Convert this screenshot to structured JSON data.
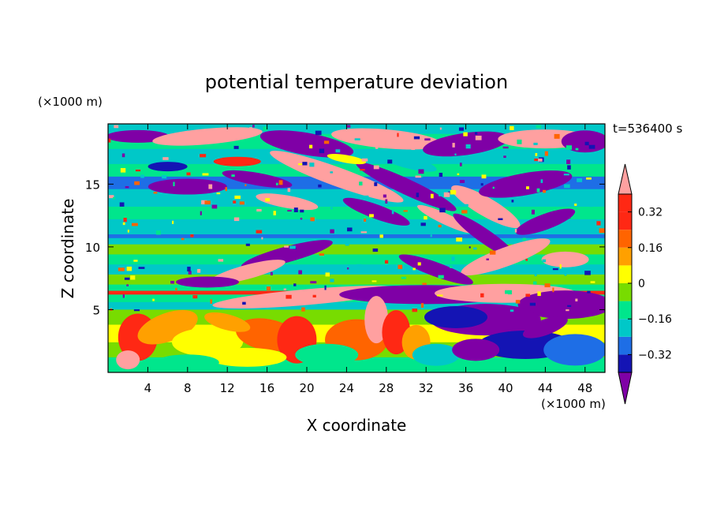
{
  "chart_data": {
    "type": "heatmap",
    "title": "potential temperature deviation",
    "xlabel": "X coordinate",
    "ylabel": "Z coordinate",
    "x_unit": "(×1000 m)",
    "y_unit": "(×1000 m)",
    "time_label": "t=536400 s",
    "xlim": [
      0,
      50
    ],
    "ylim": [
      0,
      19.8
    ],
    "x_ticks": [
      "4",
      "8",
      "12",
      "16",
      "20",
      "24",
      "28",
      "32",
      "36",
      "40",
      "44",
      "48"
    ],
    "y_ticks": [
      "5",
      "10",
      "15"
    ],
    "x_tick_values": [
      4,
      8,
      12,
      16,
      20,
      24,
      28,
      32,
      36,
      40,
      44,
      48
    ],
    "y_tick_values": [
      5,
      10,
      15
    ],
    "colorbar": {
      "levels": [
        -0.4,
        -0.32,
        -0.24,
        -0.16,
        -0.08,
        0,
        0.08,
        0.16,
        0.24,
        0.32,
        0.4
      ],
      "labels": [
        "0.32",
        "0.16",
        "0",
        "−0.16",
        "−0.32"
      ],
      "label_values": [
        0.32,
        0.16,
        0,
        -0.16,
        -0.32
      ],
      "colors": [
        "#7f00a6",
        "#1414b4",
        "#1e6ee6",
        "#00c8c8",
        "#00e68c",
        "#78dc00",
        "#ffff00",
        "#ffa000",
        "#ff6400",
        "#ff2814",
        "#ffa0a0"
      ],
      "extend": "both"
    }
  }
}
